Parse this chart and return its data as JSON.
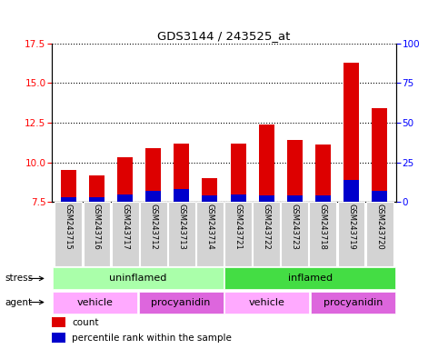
{
  "title": "GDS3144 / 243525_at",
  "samples": [
    "GSM243715",
    "GSM243716",
    "GSM243717",
    "GSM243712",
    "GSM243713",
    "GSM243714",
    "GSM243721",
    "GSM243722",
    "GSM243723",
    "GSM243718",
    "GSM243719",
    "GSM243720"
  ],
  "count_values": [
    9.5,
    9.2,
    10.3,
    10.9,
    11.2,
    9.0,
    11.2,
    12.4,
    11.4,
    11.1,
    16.3,
    13.4
  ],
  "percentile_values": [
    3,
    3,
    5,
    7,
    8,
    4,
    5,
    4,
    4,
    4,
    14,
    7
  ],
  "base_value": 7.5,
  "ylim_left": [
    7.5,
    17.5
  ],
  "ylim_right": [
    0,
    100
  ],
  "yticks_left": [
    7.5,
    10.0,
    12.5,
    15.0,
    17.5
  ],
  "yticks_right": [
    0,
    25,
    50,
    75,
    100
  ],
  "bar_color_red": "#dd0000",
  "bar_color_blue": "#0000cc",
  "stress_row": [
    {
      "label": "uninflamed",
      "start": 0,
      "end": 6,
      "color": "#aaffaa"
    },
    {
      "label": "inflamed",
      "start": 6,
      "end": 12,
      "color": "#44dd44"
    }
  ],
  "agent_row": [
    {
      "label": "vehicle",
      "start": 0,
      "end": 3,
      "color": "#ffaaff"
    },
    {
      "label": "procyanidin",
      "start": 3,
      "end": 6,
      "color": "#dd66dd"
    },
    {
      "label": "vehicle",
      "start": 6,
      "end": 9,
      "color": "#ffaaff"
    },
    {
      "label": "procyanidin",
      "start": 9,
      "end": 12,
      "color": "#dd66dd"
    }
  ],
  "stress_label": "stress",
  "agent_label": "agent",
  "legend_red": "count",
  "legend_blue": "percentile rank within the sample",
  "bar_width": 0.55
}
